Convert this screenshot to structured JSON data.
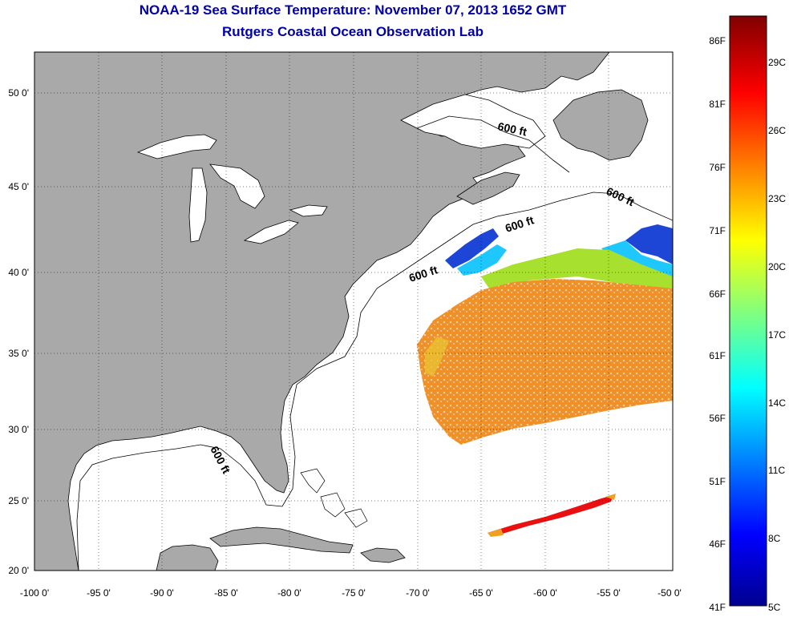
{
  "title": "NOAA-19 Sea Surface Temperature:  November 07, 2013 1652 GMT",
  "subtitle": "Rutgers Coastal Ocean Observation Lab",
  "lon_labels": [
    "-100 0'",
    "-95 0'",
    "-90 0'",
    "-85 0'",
    "-80 0'",
    "-75 0'",
    "-70 0'",
    "-65 0'",
    "-60 0'",
    "-55 0'",
    "-50 0'"
  ],
  "lat_labels": [
    "50 0'",
    "45 0'",
    "40 0'",
    "35 0'",
    "30 0'",
    "25 0'",
    "20 0'"
  ],
  "contour_labels": [
    "600 ft",
    "600 ft",
    "600 ft",
    "600 ft",
    "600 ft"
  ],
  "colorbar": {
    "fahrenheit": [
      "86F",
      "81F",
      "76F",
      "71F",
      "66F",
      "61F",
      "56F",
      "51F",
      "46F",
      "41F"
    ],
    "celsius": [
      "29C",
      "26C",
      "23C",
      "20C",
      "17C",
      "14C",
      "11C",
      "8C",
      "5C"
    ]
  },
  "colors": {
    "title": "#0000a8",
    "land": "#a9a9a9",
    "ocean": "#ffffff",
    "cold": "#1e46d6",
    "cool": "#1ec8ff",
    "mild": "#f0e000",
    "warm": "#f09028",
    "hot": "#e81010"
  }
}
